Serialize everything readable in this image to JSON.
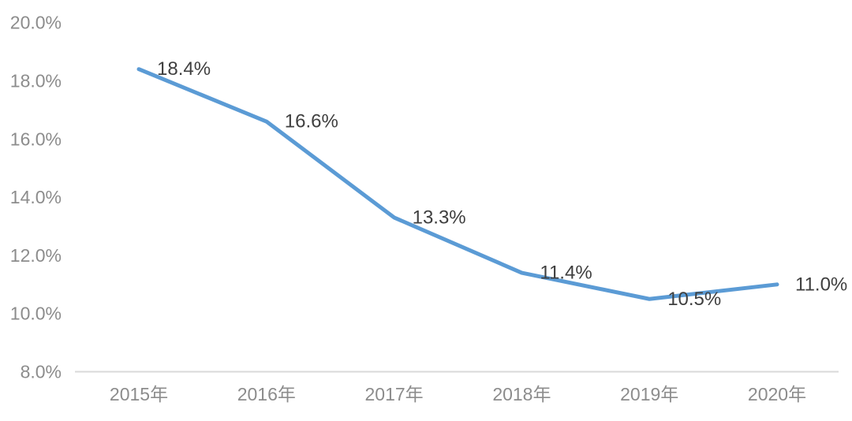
{
  "chart_data": {
    "type": "line",
    "title": "",
    "categories": [
      "2015年",
      "2016年",
      "2017年",
      "2018年",
      "2019年",
      "2020年"
    ],
    "series": [
      {
        "name": "rate",
        "values": [
          18.4,
          16.6,
          13.3,
          11.4,
          10.5,
          11.0
        ]
      }
    ],
    "data_labels": [
      "18.4%",
      "16.6%",
      "13.3%",
      "11.4%",
      "10.5%",
      "11.0%"
    ],
    "xlabel": "",
    "ylabel": "",
    "ylim": [
      8,
      20
    ],
    "y_axis": {
      "tick_labels": [
        "20.0%",
        "18.0%",
        "16.0%",
        "14.0%",
        "12.0%",
        "10.0%",
        "8.0%"
      ],
      "tick_values": [
        20,
        18,
        16,
        14,
        12,
        10,
        8
      ]
    },
    "grid": false,
    "legend_position": "none",
    "colors": {
      "line": "#5B9BD5",
      "axis_line": "#D9D9D9",
      "tick_label": "#8C8C8C",
      "data_label": "#3F3F3F",
      "background": "#FFFFFF"
    }
  }
}
